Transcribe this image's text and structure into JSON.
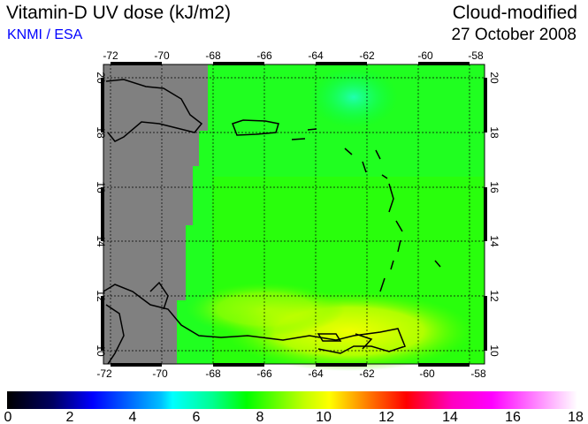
{
  "header": {
    "title": "Vitamin-D UV dose (kJ/m2)",
    "credit": "KNMI / ESA",
    "subtitle": "Cloud-modified",
    "date": "27 October 2008"
  },
  "map": {
    "lon_ticks": [
      "-72",
      "-70",
      "-68",
      "-66",
      "-64",
      "-62",
      "-60",
      "-58"
    ],
    "lat_ticks": [
      "20",
      "18",
      "16",
      "14",
      "12",
      "10"
    ],
    "lon_range": [
      -72.3,
      -57.8
    ],
    "lat_range": [
      9.5,
      20.5
    ],
    "land_mask_color": "#808080"
  },
  "colorbar": {
    "labels": [
      "0",
      "2",
      "4",
      "6",
      "8",
      "10",
      "12",
      "14",
      "16",
      "18"
    ],
    "range": [
      0,
      18
    ],
    "stops": [
      "#000000",
      "#000080",
      "#0000ff",
      "#00c0ff",
      "#00ffff",
      "#00ff80",
      "#00ff00",
      "#c0ff00",
      "#ffff00",
      "#ff8000",
      "#ff0000",
      "#ff00c0",
      "#ff00ff",
      "#ffffff"
    ]
  }
}
